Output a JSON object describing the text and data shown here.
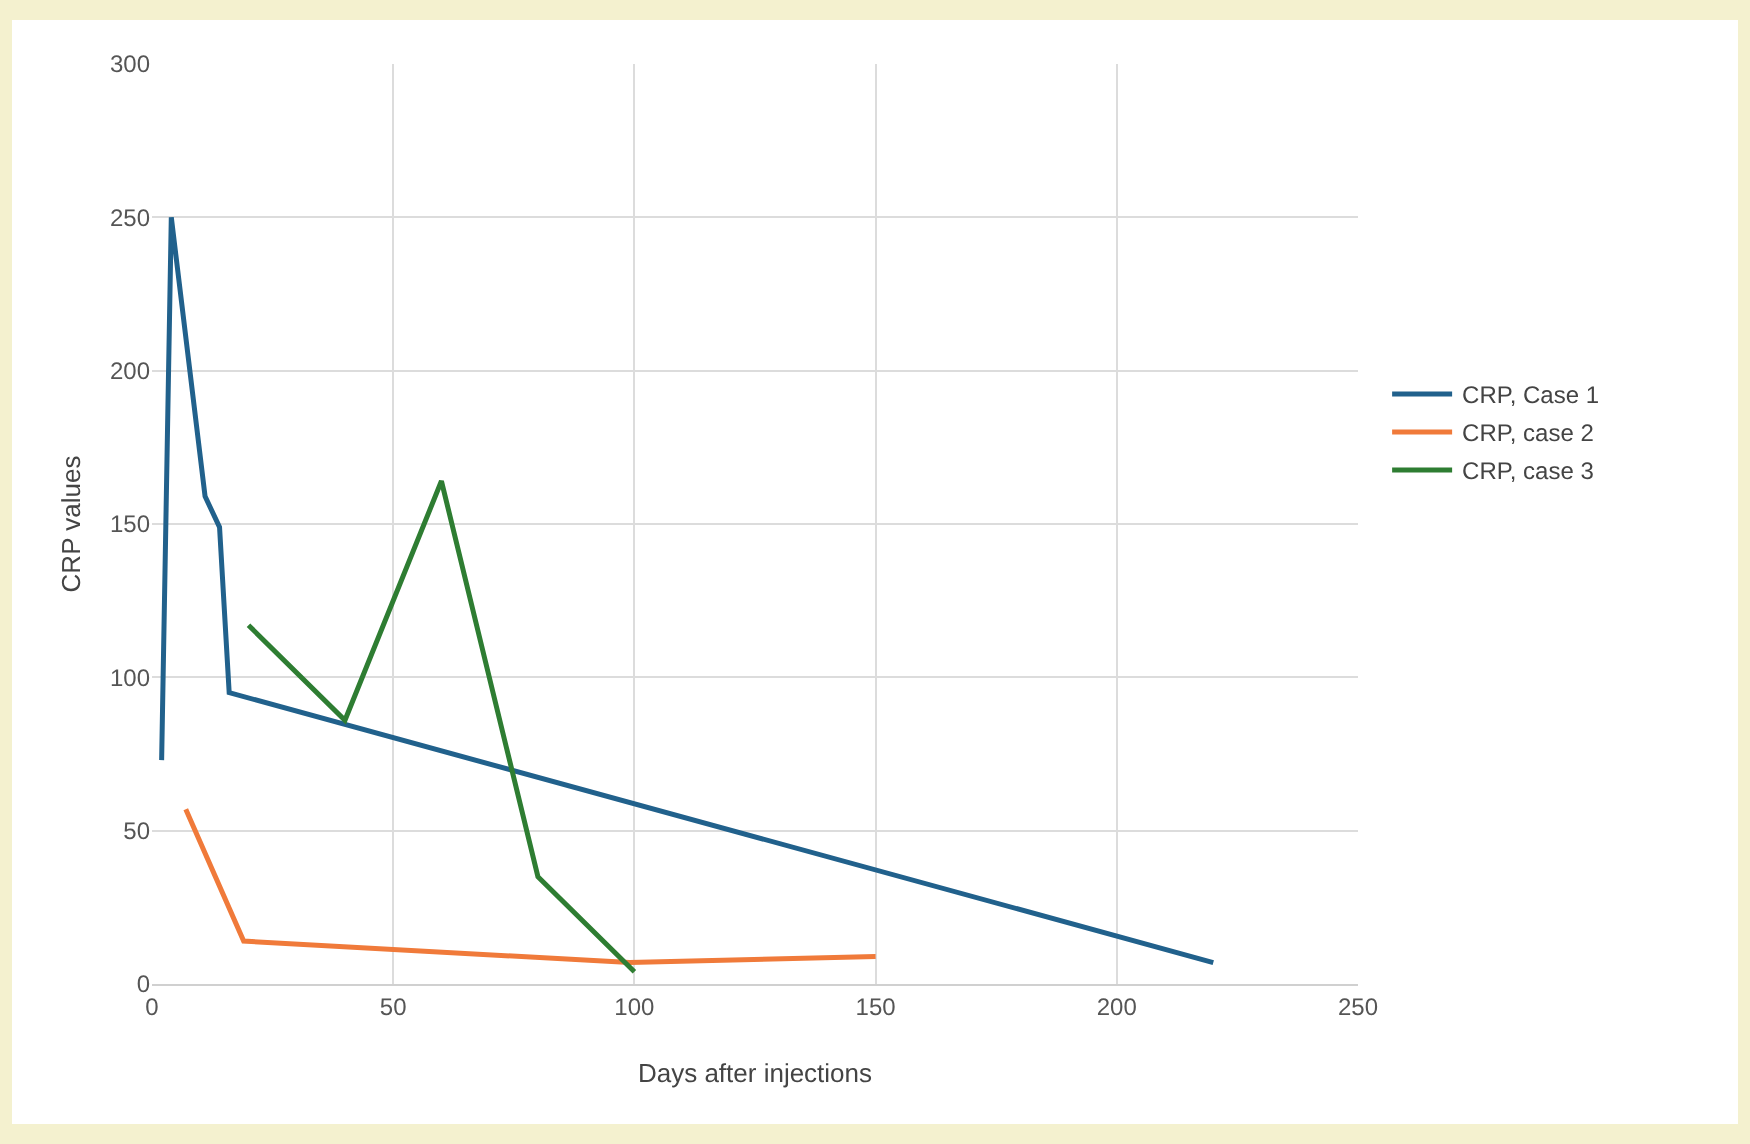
{
  "chart_data": {
    "type": "line",
    "xlabel": "Days after injections",
    "ylabel": "CRP values",
    "series": [
      {
        "name": "CRP, Case 1",
        "color": "#21618c",
        "x": [
          2,
          4,
          11,
          14,
          16,
          220
        ],
        "values": [
          73,
          250,
          159,
          149,
          95,
          7
        ]
      },
      {
        "name": "CRP, case 2",
        "color": "#f07a3a",
        "x": [
          7,
          19,
          99,
          150
        ],
        "values": [
          57,
          14,
          7,
          9
        ]
      },
      {
        "name": "CRP, case 3",
        "color": "#2e7d32",
        "x": [
          20,
          40,
          60,
          80,
          100
        ],
        "values": [
          117,
          86,
          164,
          35,
          4
        ]
      }
    ],
    "xlim": [
      0,
      250
    ],
    "xticks": [
      0,
      50,
      100,
      150,
      200,
      250
    ],
    "ylim": [
      0,
      300
    ],
    "yticks": [
      0,
      50,
      100,
      150,
      200,
      250,
      300
    ],
    "grid": true,
    "legend": "right",
    "marker": "none",
    "line_style": "solid"
  }
}
